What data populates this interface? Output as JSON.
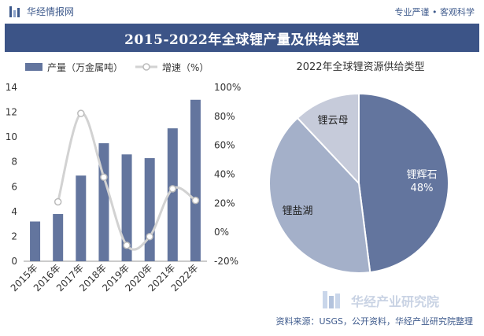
{
  "header": {
    "brand": "华经情报网",
    "tagline": "专业严谨 • 客观科学",
    "title": "2015-2022年全球锂产量及供给类型"
  },
  "footer": {
    "watermark": "华经产业研究院",
    "source": "资料来源：USGS，公开资料，华经产业研究院整理"
  },
  "colors": {
    "bar": "#63759e",
    "line": "#d2d2d2",
    "title_bg": "#3c5487",
    "pie_hard_rock": "#63759e",
    "pie_brine": "#a4b0c9",
    "pie_mica": "#c6cbda"
  },
  "chart_data": [
    {
      "type": "bar",
      "legend": [
        "产量（万金属吨）",
        "增速（%）"
      ],
      "categories": [
        "2015年",
        "2016年",
        "2017年",
        "2018年",
        "2019年",
        "2020年",
        "2021年",
        "2022年"
      ],
      "series": [
        {
          "name": "产量（万金属吨）",
          "type": "bar",
          "axis": "left",
          "values": [
            3.2,
            3.8,
            6.9,
            9.5,
            8.6,
            8.3,
            10.7,
            13.0
          ]
        },
        {
          "name": "增速（%）",
          "type": "line",
          "axis": "right",
          "values": [
            null,
            21,
            82,
            38,
            -9,
            -3,
            30,
            22
          ]
        }
      ],
      "left_axis": {
        "min": 0,
        "max": 14,
        "ticks": [
          "0",
          "2",
          "4",
          "6",
          "8",
          "10",
          "12",
          "14"
        ]
      },
      "right_axis": {
        "min": -20,
        "max": 100,
        "ticks": [
          "-20%",
          "0%",
          "20%",
          "40%",
          "60%",
          "80%",
          "100%"
        ]
      },
      "legend_position": "top-left",
      "grid": false
    },
    {
      "type": "pie",
      "title": "2022年全球锂资源供给类型",
      "slices": [
        {
          "label": "锂辉石",
          "value": 48,
          "value_label": "48%"
        },
        {
          "label": "锂盐湖",
          "value": 40
        },
        {
          "label": "锂云母",
          "value": 12
        }
      ]
    }
  ]
}
